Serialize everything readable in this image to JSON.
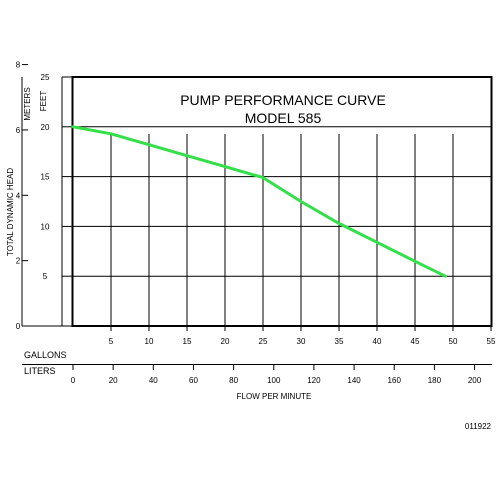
{
  "chart_data": {
    "type": "line",
    "title_line1": "PUMP PERFORMANCE CURVE",
    "title_line2": "MODEL 585",
    "ylabel": "TOTAL DYNAMIC HEAD",
    "xlabel": "FLOW PER MINUTE",
    "y_unit_meters": "METERS",
    "y_unit_feet": "FEET",
    "x_unit_gallons": "GALLONS",
    "x_unit_liters": "LITERS",
    "code": "011922",
    "xlim_gallons": [
      0,
      55
    ],
    "ylim_feet": [
      0,
      25
    ],
    "gallon_ticks": [
      "5",
      "10",
      "15",
      "20",
      "25",
      "30",
      "35",
      "40",
      "45",
      "50",
      "55"
    ],
    "liter_ticks": [
      "0",
      "20",
      "40",
      "60",
      "80",
      "100",
      "120",
      "140",
      "160",
      "180",
      "200"
    ],
    "feet_ticks": [
      "5",
      "10",
      "15",
      "20",
      "25"
    ],
    "meter_ticks": [
      "0",
      "2",
      "4",
      "6",
      "8"
    ],
    "grid": true,
    "series": [
      {
        "color": "#33e04a",
        "x": [
          0,
          5,
          10,
          15,
          20,
          25,
          30,
          35,
          40,
          45,
          49
        ],
        "y": [
          20,
          19.3,
          18.2,
          17.1,
          16.0,
          14.9,
          12.5,
          10.3,
          8.4,
          6.5,
          5.0
        ]
      }
    ]
  }
}
